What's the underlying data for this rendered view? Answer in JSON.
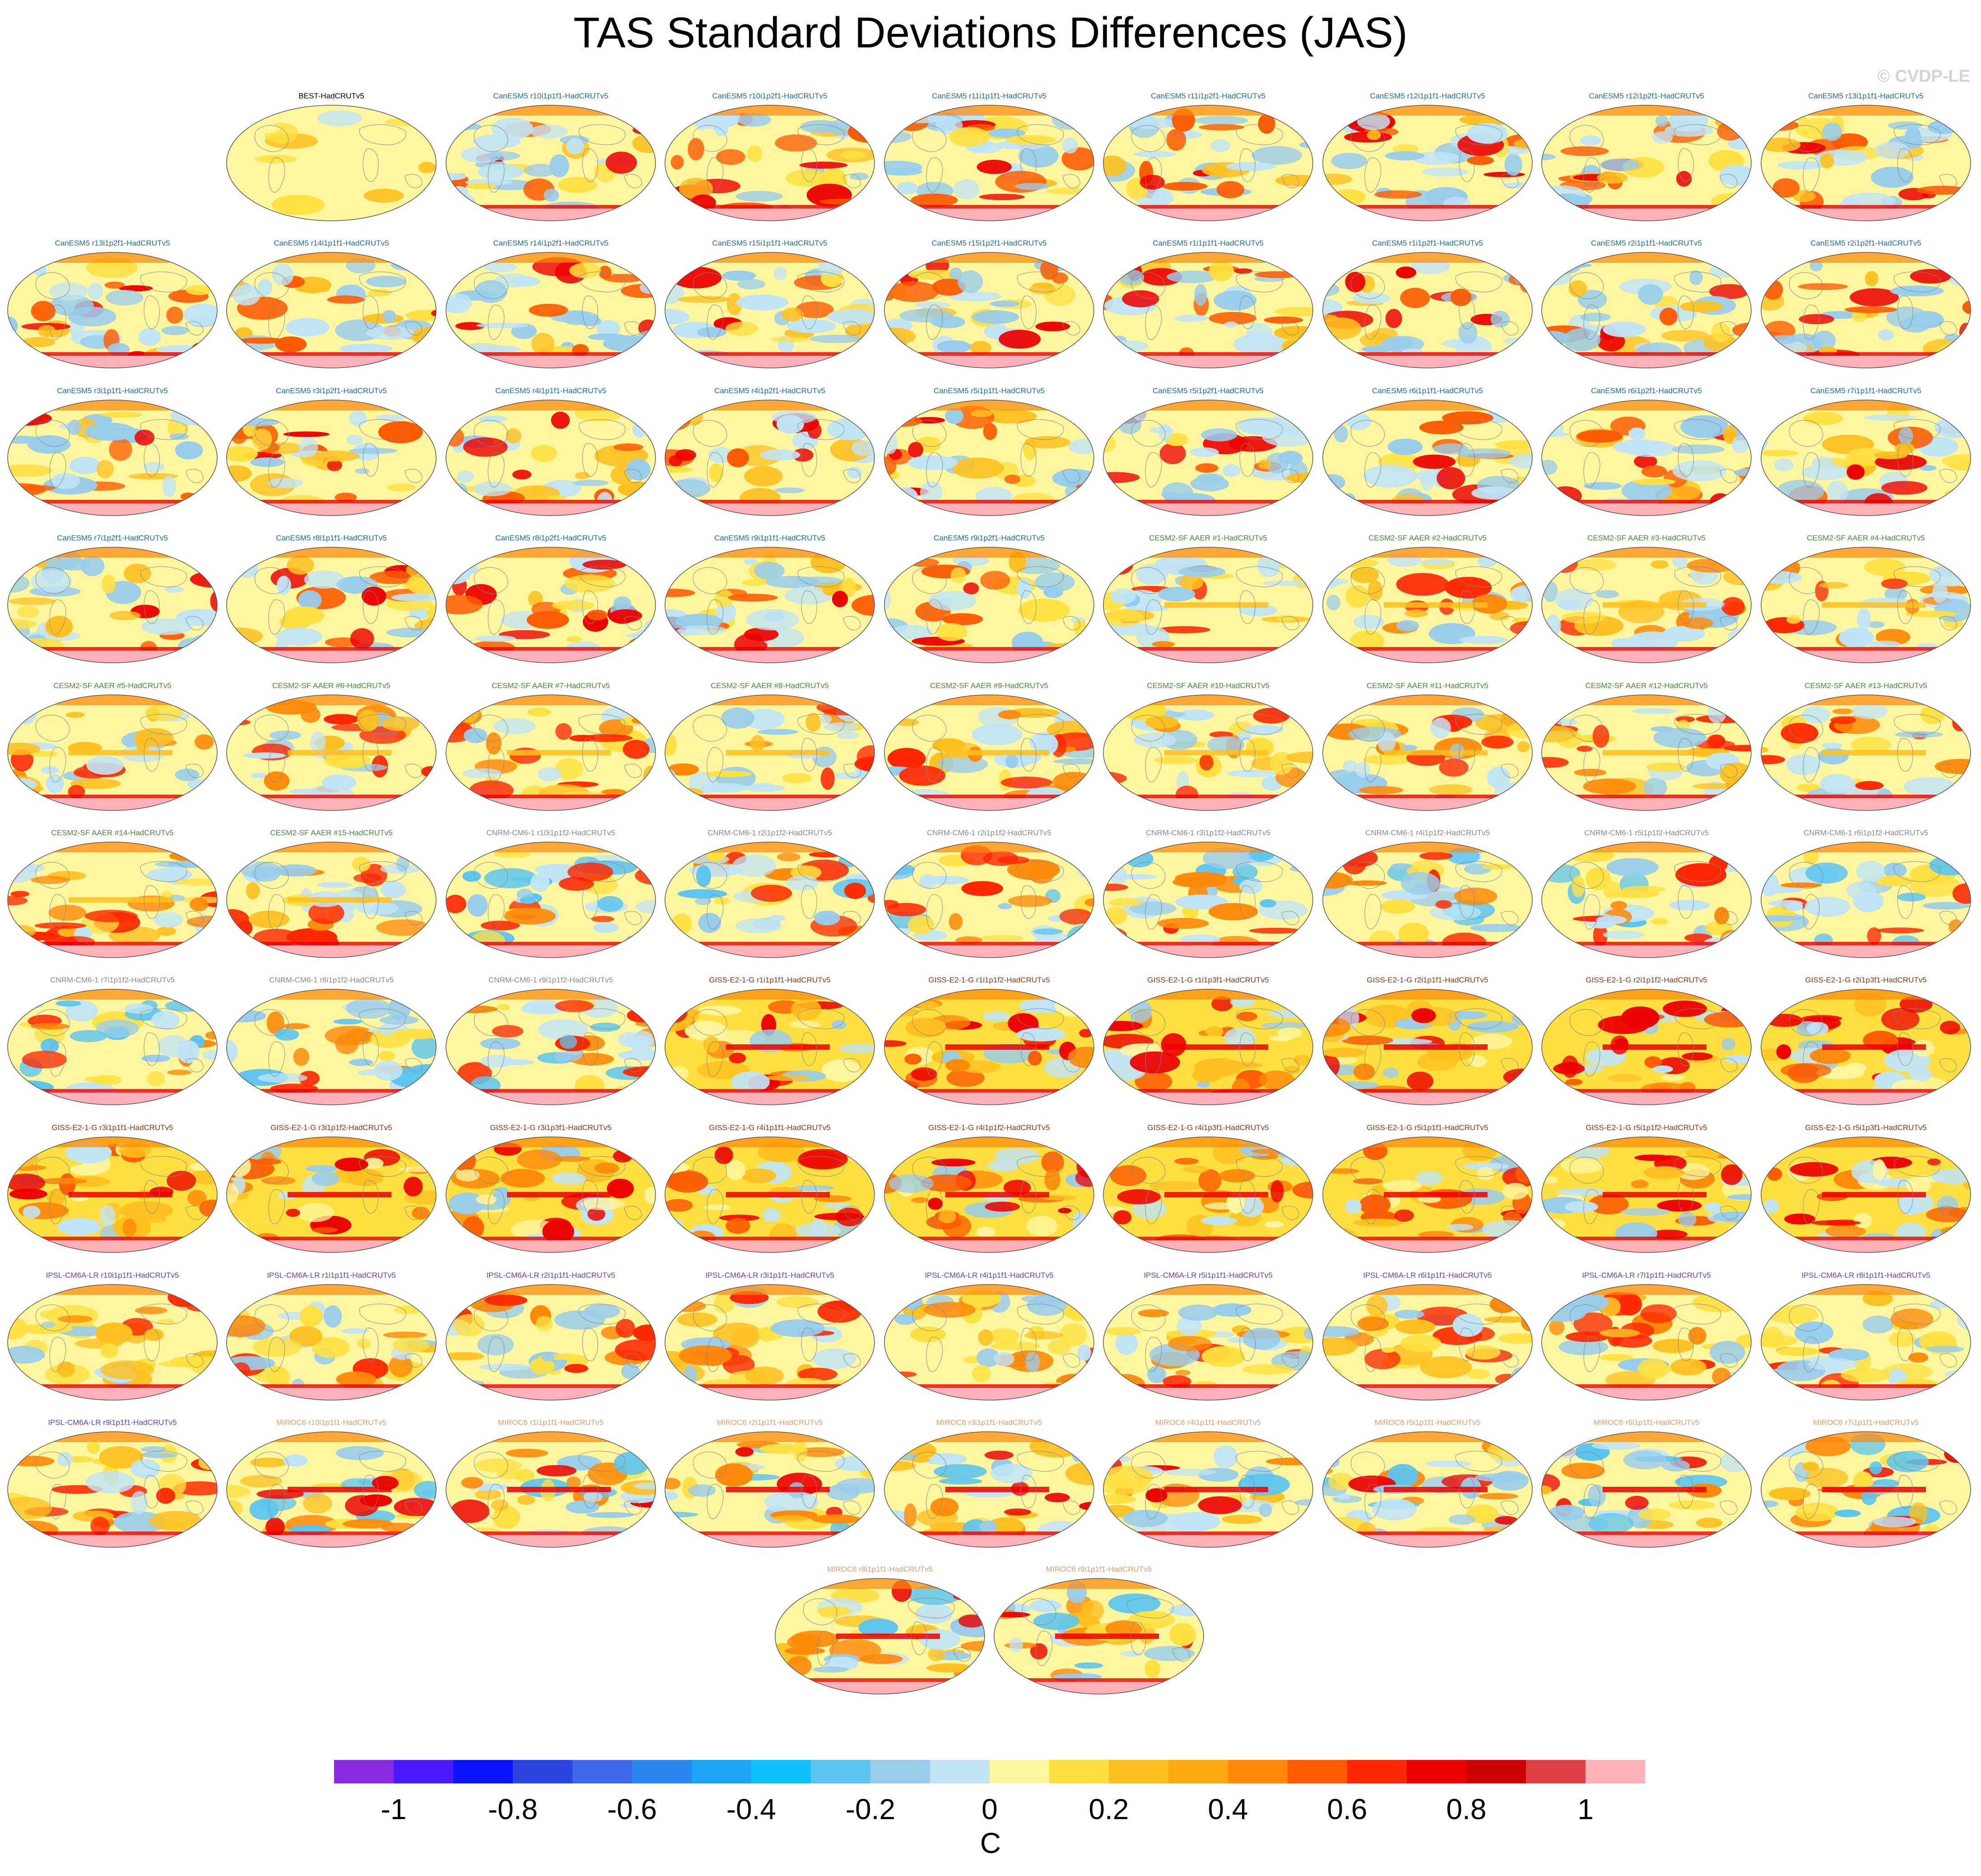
{
  "title": "TAS Standard Deviations Differences (JAS)",
  "watermark": "© CVDP-LE",
  "colors": {
    "CanESM5": "#1d6f9a",
    "CESM2-SF": "#4a8a3a",
    "CNRM-CM6-1": "#8a8a8a",
    "GISS-E2-1-G": "#8b3a14",
    "IPSL-CM6A-LR": "#6a3fc4",
    "MIROC6": "#e0a070",
    "observation": "#000000"
  },
  "panels": [
    {
      "label": "BEST-HadCRUTv5",
      "group": "observation",
      "style": "obs"
    },
    {
      "label": "CanESM5 r10i1p1f1-HadCRUTv5",
      "group": "CanESM5",
      "style": "can"
    },
    {
      "label": "CanESM5 r10i1p2f1-HadCRUTv5",
      "group": "CanESM5",
      "style": "can"
    },
    {
      "label": "CanESM5 r11i1p1f1-HadCRUTv5",
      "group": "CanESM5",
      "style": "can"
    },
    {
      "label": "CanESM5 r11i1p2f1-HadCRUTv5",
      "group": "CanESM5",
      "style": "can"
    },
    {
      "label": "CanESM5 r12i1p1f1-HadCRUTv5",
      "group": "CanESM5",
      "style": "can"
    },
    {
      "label": "CanESM5 r12i1p2f1-HadCRUTv5",
      "group": "CanESM5",
      "style": "can"
    },
    {
      "label": "CanESM5 r13i1p1f1-HadCRUTv5",
      "group": "CanESM5",
      "style": "can"
    },
    {
      "label": "CanESM5 r13i1p2f1-HadCRUTv5",
      "group": "CanESM5",
      "style": "can"
    },
    {
      "label": "CanESM5 r14i1p1f1-HadCRUTv5",
      "group": "CanESM5",
      "style": "can"
    },
    {
      "label": "CanESM5 r14i1p2f1-HadCRUTv5",
      "group": "CanESM5",
      "style": "can"
    },
    {
      "label": "CanESM5 r15i1p1f1-HadCRUTv5",
      "group": "CanESM5",
      "style": "can"
    },
    {
      "label": "CanESM5 r15i1p2f1-HadCRUTv5",
      "group": "CanESM5",
      "style": "can"
    },
    {
      "label": "CanESM5 r1i1p1f1-HadCRUTv5",
      "group": "CanESM5",
      "style": "can"
    },
    {
      "label": "CanESM5 r1i1p2f1-HadCRUTv5",
      "group": "CanESM5",
      "style": "can"
    },
    {
      "label": "CanESM5 r2i1p1f1-HadCRUTv5",
      "group": "CanESM5",
      "style": "can"
    },
    {
      "label": "CanESM5 r2i1p2f1-HadCRUTv5",
      "group": "CanESM5",
      "style": "can"
    },
    {
      "label": "CanESM5 r3i1p1f1-HadCRUTv5",
      "group": "CanESM5",
      "style": "can"
    },
    {
      "label": "CanESM5 r3i1p2f1-HadCRUTv5",
      "group": "CanESM5",
      "style": "can"
    },
    {
      "label": "CanESM5 r4i1p1f1-HadCRUTv5",
      "group": "CanESM5",
      "style": "can"
    },
    {
      "label": "CanESM5 r4i1p2f1-HadCRUTv5",
      "group": "CanESM5",
      "style": "can"
    },
    {
      "label": "CanESM5 r5i1p1f1-HadCRUTv5",
      "group": "CanESM5",
      "style": "can"
    },
    {
      "label": "CanESM5 r5i1p2f1-HadCRUTv5",
      "group": "CanESM5",
      "style": "can"
    },
    {
      "label": "CanESM5 r6i1p1f1-HadCRUTv5",
      "group": "CanESM5",
      "style": "can"
    },
    {
      "label": "CanESM5 r6i1p2f1-HadCRUTv5",
      "group": "CanESM5",
      "style": "can"
    },
    {
      "label": "CanESM5 r7i1p1f1-HadCRUTv5",
      "group": "CanESM5",
      "style": "can"
    },
    {
      "label": "CanESM5 r7i1p2f1-HadCRUTv5",
      "group": "CanESM5",
      "style": "can"
    },
    {
      "label": "CanESM5 r8i1p1f1-HadCRUTv5",
      "group": "CanESM5",
      "style": "can"
    },
    {
      "label": "CanESM5 r8i1p2f1-HadCRUTv5",
      "group": "CanESM5",
      "style": "can"
    },
    {
      "label": "CanESM5 r9i1p1f1-HadCRUTv5",
      "group": "CanESM5",
      "style": "can"
    },
    {
      "label": "CanESM5 r9i1p2f1-HadCRUTv5",
      "group": "CanESM5",
      "style": "can"
    },
    {
      "label": "CESM2-SF AAER #1-HadCRUTv5",
      "group": "CESM2-SF",
      "style": "cesm"
    },
    {
      "label": "CESM2-SF AAER #2-HadCRUTv5",
      "group": "CESM2-SF",
      "style": "cesm"
    },
    {
      "label": "CESM2-SF AAER #3-HadCRUTv5",
      "group": "CESM2-SF",
      "style": "cesm"
    },
    {
      "label": "CESM2-SF AAER #4-HadCRUTv5",
      "group": "CESM2-SF",
      "style": "cesm"
    },
    {
      "label": "CESM2-SF AAER #5-HadCRUTv5",
      "group": "CESM2-SF",
      "style": "cesm"
    },
    {
      "label": "CESM2-SF AAER #6-HadCRUTv5",
      "group": "CESM2-SF",
      "style": "cesm"
    },
    {
      "label": "CESM2-SF AAER #7-HadCRUTv5",
      "group": "CESM2-SF",
      "style": "cesm"
    },
    {
      "label": "CESM2-SF AAER #8-HadCRUTv5",
      "group": "CESM2-SF",
      "style": "cesm"
    },
    {
      "label": "CESM2-SF AAER #9-HadCRUTv5",
      "group": "CESM2-SF",
      "style": "cesm"
    },
    {
      "label": "CESM2-SF AAER #10-HadCRUTv5",
      "group": "CESM2-SF",
      "style": "cesm"
    },
    {
      "label": "CESM2-SF AAER #11-HadCRUTv5",
      "group": "CESM2-SF",
      "style": "cesm"
    },
    {
      "label": "CESM2-SF AAER #12-HadCRUTv5",
      "group": "CESM2-SF",
      "style": "cesm"
    },
    {
      "label": "CESM2-SF AAER #13-HadCRUTv5",
      "group": "CESM2-SF",
      "style": "cesm"
    },
    {
      "label": "CESM2-SF AAER #14-HadCRUTv5",
      "group": "CESM2-SF",
      "style": "cesm"
    },
    {
      "label": "CESM2-SF AAER #15-HadCRUTv5",
      "group": "CESM2-SF",
      "style": "cesm"
    },
    {
      "label": "CNRM-CM6-1 r10i1p1f2-HadCRUTv5",
      "group": "CNRM-CM6-1",
      "style": "cnrm"
    },
    {
      "label": "CNRM-CM6-1 r2i1p1f2-HadCRUTv5",
      "group": "CNRM-CM6-1",
      "style": "cnrm"
    },
    {
      "label": "CNRM-CM6-1 r2i1p1f2-HadCRUTv5",
      "group": "CNRM-CM6-1",
      "style": "cnrm"
    },
    {
      "label": "CNRM-CM6-1 r3i1p1f2-HadCRUTv5",
      "group": "CNRM-CM6-1",
      "style": "cnrm"
    },
    {
      "label": "CNRM-CM6-1 r4i1p1f2-HadCRUTv5",
      "group": "CNRM-CM6-1",
      "style": "cnrm"
    },
    {
      "label": "CNRM-CM6-1 r5i1p1f2-HadCRUTv5",
      "group": "CNRM-CM6-1",
      "style": "cnrm"
    },
    {
      "label": "CNRM-CM6-1 r6i1p1f2-HadCRUTv5",
      "group": "CNRM-CM6-1",
      "style": "cnrm"
    },
    {
      "label": "CNRM-CM6-1 r7i1p1f2-HadCRUTv5",
      "group": "CNRM-CM6-1",
      "style": "cnrm"
    },
    {
      "label": "CNRM-CM6-1 r8i1p1f2-HadCRUTv5",
      "group": "CNRM-CM6-1",
      "style": "cnrm"
    },
    {
      "label": "CNRM-CM6-1 r9i1p1f2-HadCRUTv5",
      "group": "CNRM-CM6-1",
      "style": "cnrm"
    },
    {
      "label": "GISS-E2-1-G r1i1p1f1-HadCRUTv5",
      "group": "GISS-E2-1-G",
      "style": "giss"
    },
    {
      "label": "GISS-E2-1-G r1i1p1f2-HadCRUTv5",
      "group": "GISS-E2-1-G",
      "style": "giss"
    },
    {
      "label": "GISS-E2-1-G r1i1p3f1-HadCRUTv5",
      "group": "GISS-E2-1-G",
      "style": "giss"
    },
    {
      "label": "GISS-E2-1-G r2i1p1f1-HadCRUTv5",
      "group": "GISS-E2-1-G",
      "style": "giss"
    },
    {
      "label": "GISS-E2-1-G r2i1p1f2-HadCRUTv5",
      "group": "GISS-E2-1-G",
      "style": "giss"
    },
    {
      "label": "GISS-E2-1-G r2i1p3f1-HadCRUTv5",
      "group": "GISS-E2-1-G",
      "style": "giss"
    },
    {
      "label": "GISS-E2-1-G r3i1p1f1-HadCRUTv5",
      "group": "GISS-E2-1-G",
      "style": "giss"
    },
    {
      "label": "GISS-E2-1-G r3i1p1f2-HadCRUTv5",
      "group": "GISS-E2-1-G",
      "style": "giss"
    },
    {
      "label": "GISS-E2-1-G r3i1p3f1-HadCRUTv5",
      "group": "GISS-E2-1-G",
      "style": "giss"
    },
    {
      "label": "GISS-E2-1-G r4i1p1f1-HadCRUTv5",
      "group": "GISS-E2-1-G",
      "style": "giss"
    },
    {
      "label": "GISS-E2-1-G r4i1p1f2-HadCRUTv5",
      "group": "GISS-E2-1-G",
      "style": "giss"
    },
    {
      "label": "GISS-E2-1-G r4i1p3f1-HadCRUTv5",
      "group": "GISS-E2-1-G",
      "style": "giss"
    },
    {
      "label": "GISS-E2-1-G r5i1p1f1-HadCRUTv5",
      "group": "GISS-E2-1-G",
      "style": "giss"
    },
    {
      "label": "GISS-E2-1-G r5i1p1f2-HadCRUTv5",
      "group": "GISS-E2-1-G",
      "style": "giss"
    },
    {
      "label": "GISS-E2-1-G r5i1p3f1-HadCRUTv5",
      "group": "GISS-E2-1-G",
      "style": "giss"
    },
    {
      "label": "IPSL-CM6A-LR r10i1p1f1-HadCRUTv5",
      "group": "IPSL-CM6A-LR",
      "style": "ipsl"
    },
    {
      "label": "IPSL-CM6A-LR r1i1p1f1-HadCRUTv5",
      "group": "IPSL-CM6A-LR",
      "style": "ipsl"
    },
    {
      "label": "IPSL-CM6A-LR r2i1p1f1-HadCRUTv5",
      "group": "IPSL-CM6A-LR",
      "style": "ipsl"
    },
    {
      "label": "IPSL-CM6A-LR r3i1p1f1-HadCRUTv5",
      "group": "IPSL-CM6A-LR",
      "style": "ipsl"
    },
    {
      "label": "IPSL-CM6A-LR r4i1p1f1-HadCRUTv5",
      "group": "IPSL-CM6A-LR",
      "style": "ipsl"
    },
    {
      "label": "IPSL-CM6A-LR r5i1p1f1-HadCRUTv5",
      "group": "IPSL-CM6A-LR",
      "style": "ipsl"
    },
    {
      "label": "IPSL-CM6A-LR r6i1p1f1-HadCRUTv5",
      "group": "IPSL-CM6A-LR",
      "style": "ipsl"
    },
    {
      "label": "IPSL-CM6A-LR r7i1p1f1-HadCRUTv5",
      "group": "IPSL-CM6A-LR",
      "style": "ipsl"
    },
    {
      "label": "IPSL-CM6A-LR r8i1p1f1-HadCRUTv5",
      "group": "IPSL-CM6A-LR",
      "style": "ipsl"
    },
    {
      "label": "IPSL-CM6A-LR r9i1p1f1-HadCRUTv5",
      "group": "IPSL-CM6A-LR",
      "style": "ipsl"
    },
    {
      "label": "MIROC6 r10i1p1f1-HadCRUTv5",
      "group": "MIROC6",
      "style": "miroc"
    },
    {
      "label": "MIROC6 r1i1p1f1-HadCRUTv5",
      "group": "MIROC6",
      "style": "miroc"
    },
    {
      "label": "MIROC6 r2i1p1f1-HadCRUTv5",
      "group": "MIROC6",
      "style": "miroc"
    },
    {
      "label": "MIROC6 r3i1p1f1-HadCRUTv5",
      "group": "MIROC6",
      "style": "miroc"
    },
    {
      "label": "MIROC6 r4i1p1f1-HadCRUTv5",
      "group": "MIROC6",
      "style": "miroc"
    },
    {
      "label": "MIROC6 r5i1p1f1-HadCRUTv5",
      "group": "MIROC6",
      "style": "miroc"
    },
    {
      "label": "MIROC6 r6i1p1f1-HadCRUTv5",
      "group": "MIROC6",
      "style": "miroc"
    },
    {
      "label": "MIROC6 r7i1p1f1-HadCRUTv5",
      "group": "MIROC6",
      "style": "miroc"
    },
    {
      "label": "MIROC6 r8i1p1f1-HadCRUTv5",
      "group": "MIROC6",
      "style": "miroc"
    },
    {
      "label": "MIROC6 r9i1p1f1-HadCRUTv5",
      "group": "MIROC6",
      "style": "miroc"
    }
  ],
  "colorbar": {
    "colors": [
      "#8a2be2",
      "#4b1aff",
      "#0a14ff",
      "#2a44e0",
      "#3a68e8",
      "#2a86f0",
      "#1ca4f4",
      "#0cc0f8",
      "#5cc4f0",
      "#98ccec",
      "#c0e4f6",
      "#fff6a0",
      "#ffe040",
      "#ffc020",
      "#ffa810",
      "#ff8808",
      "#ff5a00",
      "#ff2600",
      "#ec0000",
      "#cc0000",
      "#dd4040",
      "#ffb0b8"
    ],
    "ticks": [
      "-1",
      "-0.8",
      "-0.6",
      "-0.4",
      "-0.2",
      "0",
      "0.2",
      "0.4",
      "0.6",
      "0.8",
      "1"
    ],
    "units": "C"
  }
}
